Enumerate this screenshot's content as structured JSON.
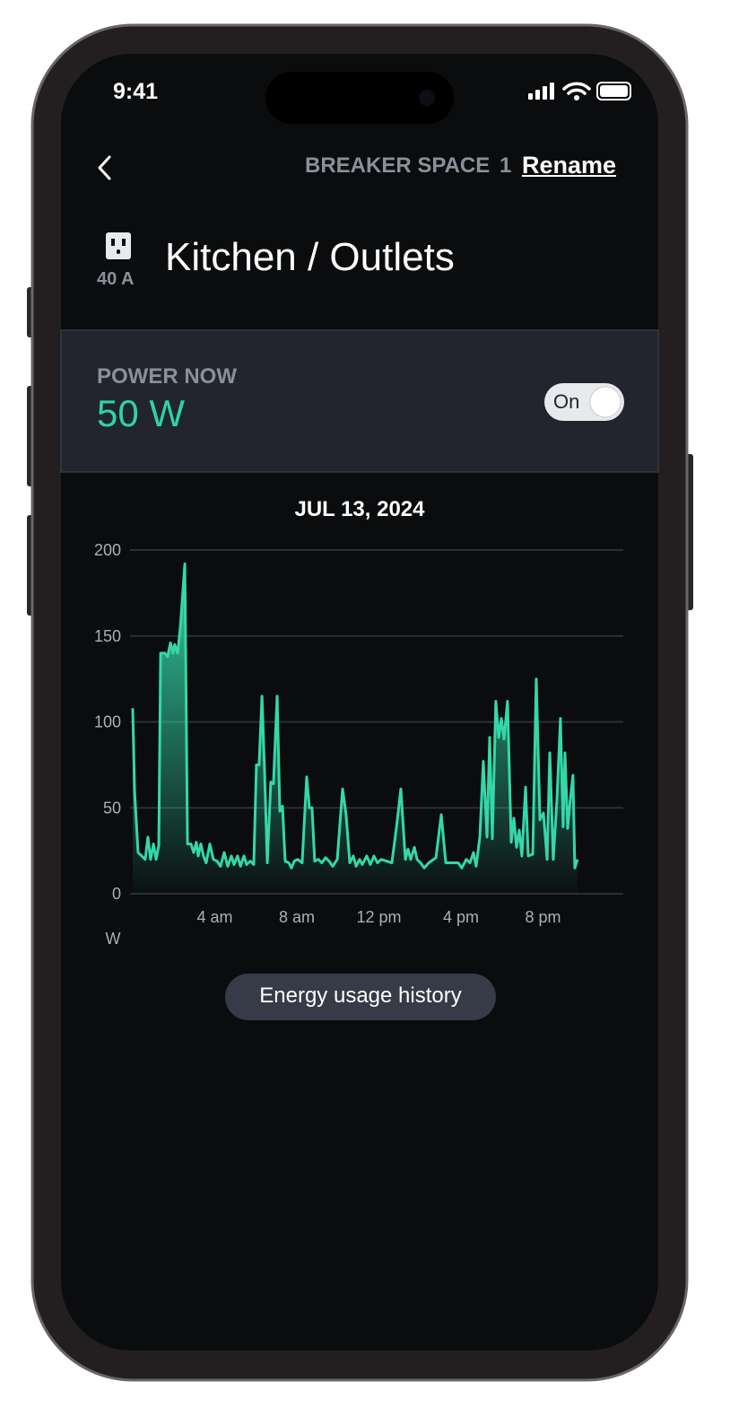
{
  "status_bar": {
    "time": "9:41"
  },
  "header": {
    "breaker_label": "BREAKER SPACE",
    "breaker_number": "1",
    "rename": "Rename"
  },
  "circuit": {
    "amperage": "40 A",
    "name": "Kitchen / Outlets"
  },
  "power": {
    "label": "POWER NOW",
    "value": "50 W",
    "toggle": "On"
  },
  "chart": {
    "type": "line",
    "title": "JUL 13, 2024",
    "y_unit": "W",
    "color": "#34d8a8",
    "grid": true,
    "xlim": [
      0,
      24
    ],
    "ylim": [
      0,
      200
    ],
    "yticks": [
      0,
      50,
      100,
      150,
      200
    ],
    "xticks": [
      {
        "value": 4,
        "label": "4 am"
      },
      {
        "value": 8,
        "label": "8 am"
      },
      {
        "value": 12,
        "label": "12 pm"
      },
      {
        "value": 16,
        "label": "4 pm"
      },
      {
        "value": 20,
        "label": "8 pm"
      }
    ],
    "x": [
      0,
      0.09,
      0.26,
      0.44,
      0.61,
      0.74,
      0.87,
      1.01,
      1.14,
      1.27,
      1.36,
      1.57,
      1.7,
      1.84,
      1.97,
      2.05,
      2.19,
      2.32,
      2.54,
      2.67,
      2.84,
      2.97,
      3.1,
      3.19,
      3.32,
      3.45,
      3.58,
      3.76,
      3.93,
      4.11,
      4.28,
      4.46,
      4.63,
      4.81,
      4.94,
      5.11,
      5.25,
      5.42,
      5.55,
      5.73,
      5.9,
      6.03,
      6.16,
      6.3,
      6.43,
      6.56,
      6.73,
      6.86,
      7.04,
      7.17,
      7.3,
      7.43,
      7.61,
      7.74,
      7.87,
      8.04,
      8.26,
      8.48,
      8.61,
      8.74,
      8.87,
      9.05,
      9.22,
      9.4,
      9.57,
      9.75,
      9.97,
      10.23,
      10.4,
      10.58,
      10.75,
      10.89,
      11.06,
      11.19,
      11.41,
      11.58,
      11.76,
      11.93,
      12.11,
      12.37,
      12.63,
      12.85,
      13.07,
      13.29,
      13.42,
      13.55,
      13.73,
      13.86,
      14.03,
      14.21,
      14.43,
      14.78,
      15.04,
      15.26,
      15.61,
      15.87,
      16.04,
      16.26,
      16.44,
      16.61,
      16.74,
      16.92,
      17.09,
      17.27,
      17.4,
      17.53,
      17.7,
      17.84,
      17.97,
      18.1,
      18.27,
      18.45,
      18.58,
      18.71,
      18.84,
      18.97,
      19.15,
      19.28,
      19.5,
      19.67,
      19.85,
      20.02,
      20.2,
      20.33,
      20.5,
      20.68,
      20.85,
      20.98,
      21.07,
      21.2,
      21.33,
      21.46,
      21.55,
      21.68
    ],
    "values": [
      108,
      60,
      24,
      22,
      20,
      33,
      20,
      29,
      20,
      28,
      140,
      140,
      138,
      146,
      140,
      145,
      140,
      155,
      192,
      29,
      29,
      24,
      30,
      22,
      29,
      22,
      18,
      29,
      20,
      19,
      16,
      24,
      16,
      22,
      17,
      22,
      16,
      22,
      17,
      19,
      17,
      75,
      75,
      115,
      70,
      18,
      65,
      64,
      115,
      48,
      51,
      19,
      18,
      15,
      19,
      20,
      18,
      68,
      50,
      50,
      19,
      20,
      18,
      21,
      19,
      16,
      20,
      61,
      46,
      18,
      22,
      16,
      20,
      17,
      22,
      17,
      22,
      18,
      20,
      19,
      18,
      38,
      61,
      20,
      26,
      20,
      27,
      20,
      18,
      15,
      18,
      21,
      46,
      18,
      18,
      18,
      15,
      20,
      18,
      24,
      16,
      33,
      77,
      33,
      91,
      32,
      112,
      91,
      102,
      90,
      112,
      30,
      44,
      27,
      37,
      22,
      62,
      22,
      23,
      125,
      43,
      47,
      20,
      82,
      20,
      55,
      102,
      39,
      82,
      38,
      55,
      69,
      15,
      20
    ]
  },
  "button": {
    "label": "Energy usage history"
  }
}
